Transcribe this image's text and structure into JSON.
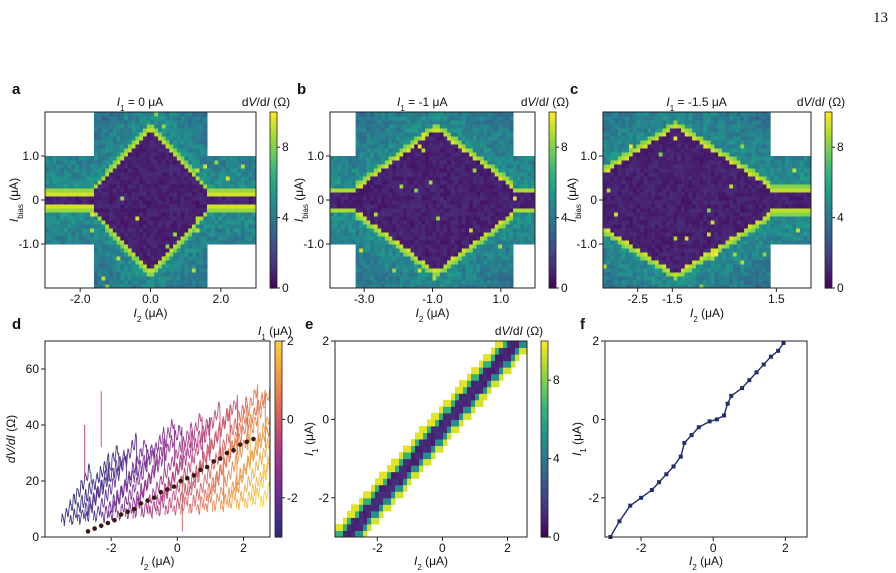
{
  "page_number": "13",
  "colors": {
    "viridis": [
      "#440154",
      "#482878",
      "#3e4989",
      "#31688e",
      "#26828e",
      "#1f9e89",
      "#35b779",
      "#6ece58",
      "#b5de2b",
      "#fde725"
    ],
    "plasma": [
      "#2a2a7a",
      "#4b2c8a",
      "#6f2c92",
      "#8e2f8f",
      "#ad3a84",
      "#c94d70",
      "#de6a58",
      "#ec8b45",
      "#f5ad3c",
      "#f9cf3a"
    ],
    "marker": "#3a1a10",
    "staircase": "#1f2f6a"
  },
  "panels": {
    "a": {
      "label": "a",
      "title": "I₁ = 0 μA",
      "cbar_title": "dV/dI (Ω)"
    },
    "b": {
      "label": "b",
      "title": "I₁ = -1 μA",
      "cbar_title": "dV/dI (Ω)"
    },
    "c": {
      "label": "c",
      "title": "I₁ = -1.5 μA",
      "cbar_title": "dV/dI (Ω)"
    },
    "d": {
      "label": "d",
      "cbar_title": "I₁ (μA)"
    },
    "e": {
      "label": "e",
      "cbar_title": "dV/dI (Ω)"
    },
    "f": {
      "label": "f"
    }
  },
  "chart_data": [
    {
      "id": "a",
      "type": "heatmap",
      "xlabel_main": "I",
      "xlabel_sub": "2",
      "xlabel_unit": " (μA)",
      "ylabel_main": "I",
      "ylabel_sub": "bias",
      "ylabel_unit": " (μA)",
      "xlim": [
        -3.0,
        3.0
      ],
      "ylim": [
        -2.0,
        2.0
      ],
      "xticks": [
        {
          "v": -2.0,
          "t": "-2.0"
        },
        {
          "v": 0.0,
          "t": "0.0"
        },
        {
          "v": 2.0,
          "t": "2.0"
        }
      ],
      "yticks": [
        {
          "v": 1.0,
          "t": "1.0"
        },
        {
          "v": 0.0,
          "t": "0"
        },
        {
          "v": -1.0,
          "t": "-1.0"
        }
      ],
      "clim": [
        0,
        10
      ],
      "cticks": [
        {
          "v": 8,
          "t": "8"
        },
        {
          "v": 4,
          "t": "4"
        },
        {
          "v": 0,
          "t": "0"
        }
      ],
      "center": 0.0,
      "halfwidth": 1.6,
      "ic_peak": 1.6,
      "ic_edge": 0.2,
      "y_full": 1.0
    },
    {
      "id": "b",
      "type": "heatmap",
      "xlabel_main": "I",
      "xlabel_sub": "2",
      "xlabel_unit": " (μA)",
      "ylabel_main": "I",
      "ylabel_sub": "bias",
      "ylabel_unit": " (μA)",
      "xlim": [
        -4.0,
        2.0
      ],
      "ylim": [
        -2.0,
        2.0
      ],
      "xticks": [
        {
          "v": -3.0,
          "t": "-3.0"
        },
        {
          "v": -1.0,
          "t": "-1.0"
        },
        {
          "v": 1.0,
          "t": "1.0"
        }
      ],
      "yticks": [
        {
          "v": 1.0,
          "t": "1.0"
        },
        {
          "v": 0.0,
          "t": "0"
        },
        {
          "v": -1.0,
          "t": "-1.0"
        }
      ],
      "clim": [
        0,
        10
      ],
      "cticks": [
        {
          "v": 8,
          "t": "8"
        },
        {
          "v": 4,
          "t": "4"
        },
        {
          "v": 0,
          "t": "0"
        }
      ],
      "center": -0.9,
      "halfwidth": 2.3,
      "ic_peak": 1.6,
      "ic_edge": 0.25,
      "y_full": 1.0
    },
    {
      "id": "c",
      "type": "heatmap",
      "xlabel_main": "I",
      "xlabel_sub": "2",
      "xlabel_unit": " (μA)",
      "ylabel_main": "I",
      "ylabel_sub": "bias",
      "ylabel_unit": " (μA)",
      "xlim": [
        -3.5,
        2.5
      ],
      "ylim": [
        -2.0,
        2.0
      ],
      "xticks": [
        {
          "v": -2.5,
          "t": "-2.5"
        },
        {
          "v": -1.5,
          "t": "-1.5"
        },
        {
          "v": 1.5,
          "t": "1.5"
        }
      ],
      "yticks": [
        {
          "v": 1.0,
          "t": "1.0"
        },
        {
          "v": 0.0,
          "t": "0"
        },
        {
          "v": -1.0,
          "t": "-1.0"
        }
      ],
      "clim": [
        0,
        10
      ],
      "cticks": [
        {
          "v": 8,
          "t": "8"
        },
        {
          "v": 4,
          "t": "4"
        },
        {
          "v": 0,
          "t": "0"
        }
      ],
      "center": -1.4,
      "halfwidth": 2.7,
      "ic_peak": 1.65,
      "ic_edge": 0.3,
      "y_full": 1.0
    },
    {
      "id": "d",
      "type": "line",
      "xlabel_main": "I",
      "xlabel_sub": "2",
      "xlabel_unit": " (μA)",
      "ylabel_main": "dV/dI",
      "ylabel_unit": " (Ω)",
      "xlim": [
        -4.0,
        2.8
      ],
      "ylim": [
        0,
        70
      ],
      "xticks": [
        {
          "v": -2,
          "t": "-2"
        },
        {
          "v": 0,
          "t": "0"
        },
        {
          "v": 2,
          "t": "2"
        }
      ],
      "yticks": [
        {
          "v": 0,
          "t": "0"
        },
        {
          "v": 20,
          "t": "20"
        },
        {
          "v": 40,
          "t": "40"
        },
        {
          "v": 60,
          "t": "60"
        }
      ],
      "clim": [
        -3,
        2
      ],
      "cticks": [
        {
          "v": 2,
          "t": "2"
        },
        {
          "v": 0,
          "t": "0"
        },
        {
          "v": -2,
          "t": "-2"
        }
      ],
      "series_I1": [
        -3.0,
        -2.8,
        -2.6,
        -2.4,
        -2.2,
        -2.0,
        -1.8,
        -1.6,
        -1.4,
        -1.2,
        -1.0,
        -0.8,
        -0.6,
        -0.4,
        -0.2,
        0.0,
        0.2,
        0.4,
        0.6,
        0.8,
        1.0,
        1.2,
        1.4,
        1.6,
        1.8,
        2.0
      ],
      "markers": [
        [
          -2.7,
          2
        ],
        [
          -2.5,
          3
        ],
        [
          -2.3,
          4
        ],
        [
          -2.1,
          5
        ],
        [
          -1.9,
          6
        ],
        [
          -1.7,
          8
        ],
        [
          -1.5,
          9
        ],
        [
          -1.3,
          10
        ],
        [
          -1.1,
          12
        ],
        [
          -0.9,
          13
        ],
        [
          -0.7,
          14
        ],
        [
          -0.5,
          16
        ],
        [
          -0.3,
          17
        ],
        [
          -0.1,
          18
        ],
        [
          0.1,
          20
        ],
        [
          0.3,
          21
        ],
        [
          0.5,
          22
        ],
        [
          0.7,
          24
        ],
        [
          0.9,
          25
        ],
        [
          1.1,
          27
        ],
        [
          1.3,
          28
        ],
        [
          1.5,
          30
        ],
        [
          1.7,
          31
        ],
        [
          1.9,
          33
        ],
        [
          2.1,
          34
        ],
        [
          2.3,
          35
        ]
      ]
    },
    {
      "id": "e",
      "type": "heatmap",
      "xlabel_main": "I",
      "xlabel_sub": "2",
      "xlabel_unit": " (μA)",
      "ylabel_main": "I",
      "ylabel_sub": "1",
      "ylabel_unit": " (μA)",
      "xlim": [
        -3.3,
        2.6
      ],
      "ylim": [
        -3.0,
        2.0
      ],
      "xticks": [
        {
          "v": -2,
          "t": "-2"
        },
        {
          "v": 0,
          "t": "0"
        },
        {
          "v": 2,
          "t": "2"
        }
      ],
      "yticks": [
        {
          "v": 2,
          "t": "2"
        },
        {
          "v": 0,
          "t": "0"
        },
        {
          "v": -2,
          "t": "-2"
        }
      ],
      "clim": [
        0,
        10
      ],
      "cticks": [
        {
          "v": 8,
          "t": "8"
        },
        {
          "v": 4,
          "t": "4"
        },
        {
          "v": 0,
          "t": "0"
        }
      ]
    },
    {
      "id": "f",
      "type": "line",
      "xlabel_main": "I",
      "xlabel_sub": "2",
      "xlabel_unit": " (μA)",
      "ylabel_main": "I",
      "ylabel_sub": "1",
      "ylabel_unit": " (μA)",
      "xlim": [
        -3.0,
        2.6
      ],
      "ylim": [
        -3.0,
        2.0
      ],
      "xticks": [
        {
          "v": -2,
          "t": "-2"
        },
        {
          "v": 0,
          "t": "0"
        },
        {
          "v": 2,
          "t": "2"
        }
      ],
      "yticks": [
        {
          "v": 2,
          "t": "2"
        },
        {
          "v": 0,
          "t": "0"
        },
        {
          "v": -2,
          "t": "-2"
        }
      ],
      "points": [
        [
          -2.85,
          -3.0
        ],
        [
          -2.6,
          -2.6
        ],
        [
          -2.3,
          -2.2
        ],
        [
          -2.0,
          -2.0
        ],
        [
          -1.7,
          -1.8
        ],
        [
          -1.5,
          -1.6
        ],
        [
          -1.3,
          -1.4
        ],
        [
          -1.1,
          -1.2
        ],
        [
          -0.9,
          -0.95
        ],
        [
          -0.8,
          -0.6
        ],
        [
          -0.6,
          -0.4
        ],
        [
          -0.4,
          -0.2
        ],
        [
          -0.1,
          -0.05
        ],
        [
          0.1,
          0.0
        ],
        [
          0.3,
          0.1
        ],
        [
          0.4,
          0.4
        ],
        [
          0.5,
          0.6
        ],
        [
          0.8,
          0.8
        ],
        [
          1.0,
          1.0
        ],
        [
          1.2,
          1.2
        ],
        [
          1.4,
          1.4
        ],
        [
          1.6,
          1.6
        ],
        [
          1.8,
          1.75
        ],
        [
          1.95,
          1.95
        ]
      ]
    }
  ]
}
